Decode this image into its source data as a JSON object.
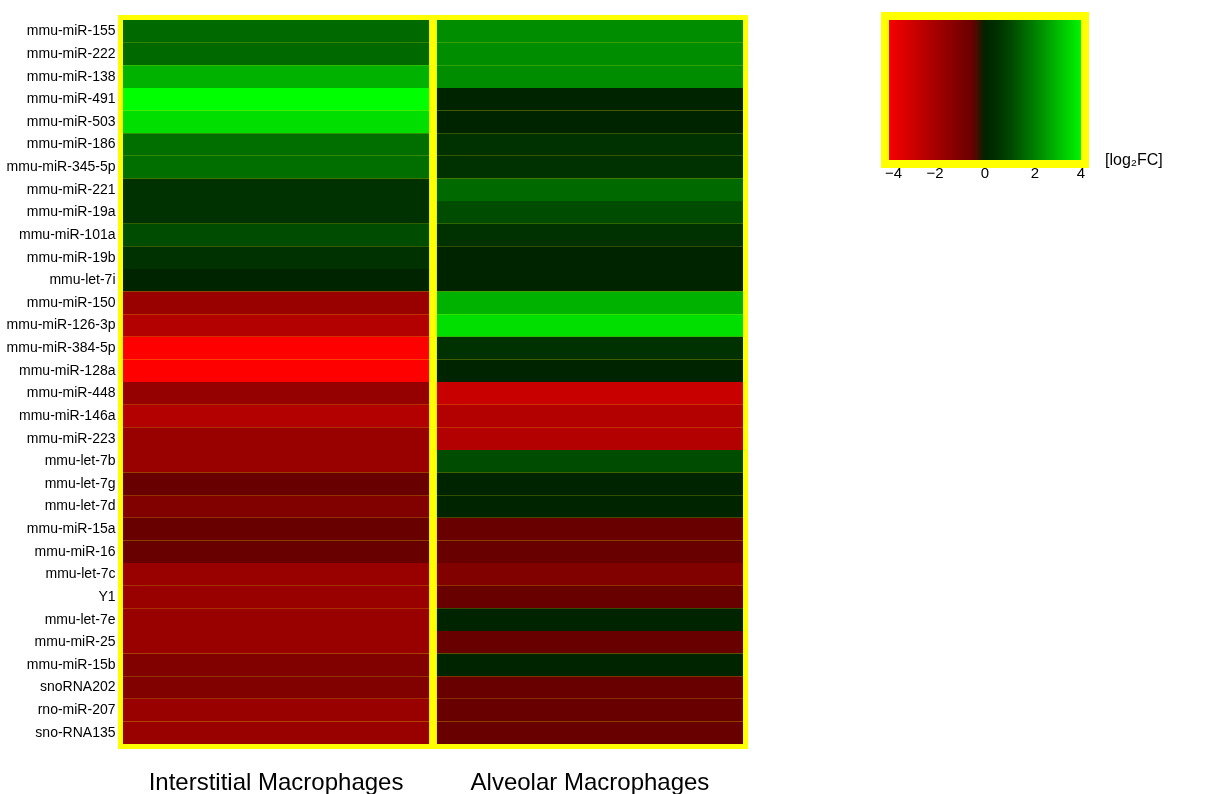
{
  "chart_data": {
    "type": "heatmap",
    "categories": [
      "Interstitial Macrophages",
      "Alveolar Macrophages"
    ],
    "y_categories": [
      "mmu-miR-155",
      "mmu-miR-222",
      "mmu-miR-138",
      "mmu-miR-491",
      "mmu-miR-503",
      "mmu-miR-186",
      "mmu-miR-345-5p",
      "mmu-miR-221",
      "mmu-miR-19a",
      "mmu-miR-101a",
      "mmu-miR-19b",
      "mmu-let-7i",
      "mmu-miR-150",
      "mmu-miR-126-3p",
      "mmu-miR-384-5p",
      "mmu-miR-128a",
      "mmu-miR-448",
      "mmu-miR-146a",
      "mmu-miR-223",
      "mmu-let-7b",
      "mmu-let-7g",
      "mmu-let-7d",
      "mmu-miR-15a",
      "mmu-miR-16",
      "mmu-let-7c",
      "Y1",
      "mmu-let-7e",
      "mmu-miR-25",
      "mmu-miR-15b",
      "snoRNA202",
      "rno-miR-207",
      "sno-RNA135"
    ],
    "cells": [
      [
        1.6,
        2.2
      ],
      [
        1.6,
        2.2
      ],
      [
        2.8,
        2.2
      ],
      [
        4,
        0
      ],
      [
        3.5,
        0
      ],
      [
        1.7,
        0.5
      ],
      [
        1.7,
        0.5
      ],
      [
        0.5,
        1.6
      ],
      [
        0.5,
        1.1
      ],
      [
        1.1,
        0.5
      ],
      [
        0.5,
        0
      ],
      [
        0,
        0
      ],
      [
        -1.7,
        2.8
      ],
      [
        -2.3,
        3.5
      ],
      [
        -4,
        0.5
      ],
      [
        -4,
        0
      ],
      [
        -1.6,
        -2.8
      ],
      [
        -2.3,
        -2.3
      ],
      [
        -1.7,
        -2.3
      ],
      [
        -1.7,
        1.1
      ],
      [
        -0.5,
        0
      ],
      [
        -1.1,
        0
      ],
      [
        -0.5,
        -0.5
      ],
      [
        -0.5,
        -0.5
      ],
      [
        -1.7,
        -1.1
      ],
      [
        -1.7,
        -0.5
      ],
      [
        -1.7,
        0
      ],
      [
        -1.7,
        -0.5
      ],
      [
        -1.1,
        0
      ],
      [
        -1.1,
        -0.5
      ],
      [
        -1.7,
        -0.5
      ],
      [
        -1.7,
        -0.5
      ]
    ],
    "clim": [
      -4,
      4
    ],
    "cticks": [
      -4,
      -2,
      0,
      2,
      4
    ],
    "clabel": "[log₂FC]"
  }
}
